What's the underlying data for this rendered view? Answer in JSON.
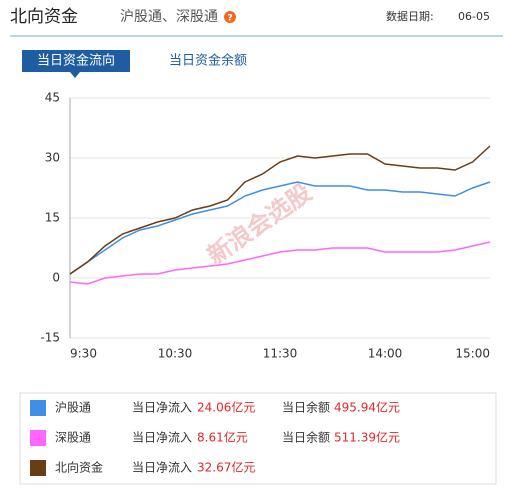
{
  "header": {
    "title": "北向资金",
    "subtitle": "沪股通、深股通",
    "date_label": "数据日期:",
    "date": "06-05"
  },
  "tabs": [
    "当日资金流向",
    "当日资金余额"
  ],
  "watermark": "新浪会选股",
  "chart_data": {
    "type": "line",
    "categories": [
      "9:30",
      null,
      null,
      null,
      null,
      null,
      "10:30",
      null,
      null,
      null,
      null,
      null,
      "11:30",
      null,
      null,
      null,
      null,
      null,
      "14:00",
      null,
      null,
      null,
      null,
      null,
      "15:00"
    ],
    "series": [
      {
        "name": "沪股通",
        "color": "#3f8fe6",
        "values": [
          1,
          4,
          7,
          10,
          12,
          13,
          14.5,
          16,
          17,
          18,
          20.5,
          22,
          23,
          24,
          23,
          23,
          23,
          22,
          22,
          21.5,
          21.5,
          21,
          20.5,
          22.5,
          24
        ]
      },
      {
        "name": "深股通",
        "color": "#ff66ff",
        "values": [
          -1,
          -1.5,
          0,
          0.5,
          1,
          1,
          2,
          2.5,
          3,
          3.5,
          4.5,
          5.5,
          6.5,
          7,
          7,
          7.5,
          7.5,
          7.5,
          6.5,
          6.5,
          6.5,
          6.5,
          7,
          8,
          9
        ]
      },
      {
        "name": "北向资金",
        "color": "#6b3d14",
        "values": [
          1,
          4,
          8,
          11,
          12.5,
          14,
          15,
          17,
          18,
          19.5,
          24,
          26,
          29,
          30.5,
          30,
          30.5,
          31,
          31,
          28.5,
          28,
          27.5,
          27.5,
          27,
          29,
          33
        ]
      }
    ],
    "ylim": [
      -15,
      45
    ],
    "yticks": [
      -15,
      0,
      15,
      30,
      45
    ],
    "grid": true
  },
  "summary": {
    "net_label": "当日净流入",
    "balance_label": "当日余额",
    "rows": [
      {
        "net": "24.06亿元",
        "balance": "495.94亿元"
      },
      {
        "net": "8.61亿元",
        "balance": "511.39亿元"
      },
      {
        "net": "32.67亿元"
      }
    ]
  }
}
